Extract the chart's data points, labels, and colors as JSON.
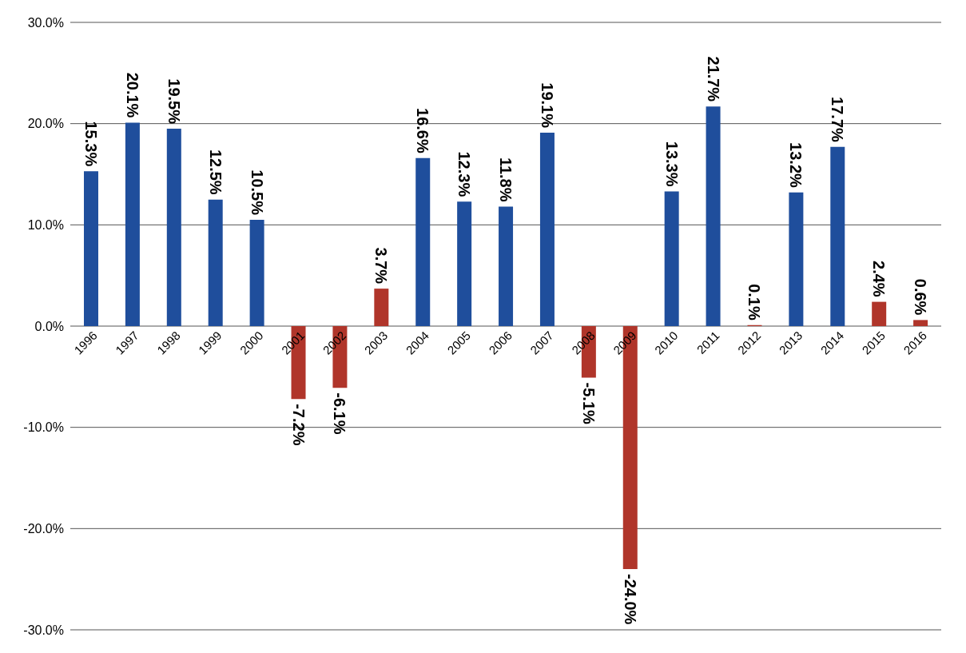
{
  "chart_data": {
    "type": "bar",
    "categories": [
      "1996",
      "1997",
      "1998",
      "1999",
      "2000",
      "2001",
      "2002",
      "2003",
      "2004",
      "2005",
      "2006",
      "2007",
      "2008",
      "2009",
      "2010",
      "2011",
      "2012",
      "2013",
      "2014",
      "2015",
      "2016"
    ],
    "values": [
      15.3,
      20.1,
      19.5,
      12.5,
      10.5,
      -7.2,
      -6.1,
      3.7,
      16.6,
      12.3,
      11.8,
      19.1,
      -5.1,
      -24.0,
      13.3,
      21.7,
      0.1,
      13.2,
      17.7,
      2.4,
      0.6
    ],
    "colors": [
      "#1f4e9c",
      "#1f4e9c",
      "#1f4e9c",
      "#1f4e9c",
      "#1f4e9c",
      "#b0352a",
      "#b0352a",
      "#b0352a",
      "#1f4e9c",
      "#1f4e9c",
      "#1f4e9c",
      "#1f4e9c",
      "#b0352a",
      "#b0352a",
      "#1f4e9c",
      "#1f4e9c",
      "#b0352a",
      "#1f4e9c",
      "#1f4e9c",
      "#b0352a",
      "#b0352a"
    ],
    "value_labels": [
      "15.3%",
      "20.1%",
      "19.5%",
      "12.5%",
      "10.5%",
      "-7.2%",
      "-6.1%",
      "3.7%",
      "16.6%",
      "12.3%",
      "11.8%",
      "19.1%",
      "-5.1%",
      "-24.0%",
      "13.3%",
      "21.7%",
      "0.1%",
      "13.2%",
      "17.7%",
      "2.4%",
      "0.6%"
    ],
    "ylim": [
      -30,
      30
    ],
    "yticks": [
      {
        "value": -30,
        "label": "-30.0%"
      },
      {
        "value": -20,
        "label": "-20.0%"
      },
      {
        "value": -10,
        "label": "-10.0%"
      },
      {
        "value": 0,
        "label": "0.0%"
      },
      {
        "value": 10,
        "label": "10.0%"
      },
      {
        "value": 20,
        "label": "20.0%"
      },
      {
        "value": 30,
        "label": "30.0%"
      }
    ],
    "grid": "y"
  }
}
